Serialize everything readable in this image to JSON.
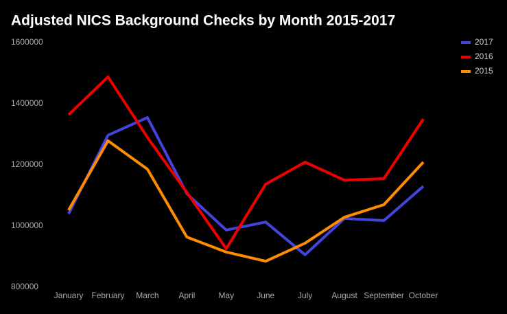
{
  "chart_data": {
    "type": "line",
    "title": "Adjusted NICS Background Checks by Month 2015-2017",
    "categories": [
      "January",
      "February",
      "March",
      "April",
      "May",
      "June",
      "July",
      "August",
      "September",
      "October"
    ],
    "series": [
      {
        "name": "2017",
        "color": "#4444dd",
        "values": [
          1040000,
          1297000,
          1355000,
          1106000,
          987000,
          1013000,
          906000,
          1025000,
          1018000,
          1130000
        ]
      },
      {
        "name": "2016",
        "color": "#ee0000",
        "values": [
          1364000,
          1488000,
          1290000,
          1110000,
          926000,
          1137000,
          1209000,
          1150000,
          1155000,
          1350000
        ]
      },
      {
        "name": "2015",
        "color": "#ff8c00",
        "values": [
          1052000,
          1279000,
          1186000,
          964000,
          915000,
          885000,
          944000,
          1029000,
          1070000,
          1209000
        ]
      }
    ],
    "ylim": [
      800000,
      1600000
    ],
    "yticks": [
      800000,
      1000000,
      1200000,
      1400000,
      1600000
    ],
    "grid": false,
    "legend": "top-right"
  }
}
